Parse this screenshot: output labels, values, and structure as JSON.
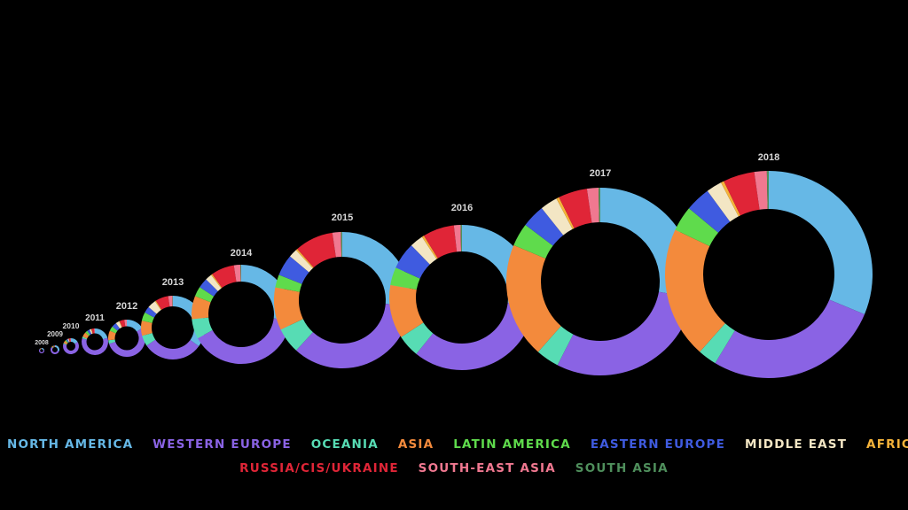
{
  "chart_data": {
    "type": "donut",
    "categories": [
      "NORTH AMERICA",
      "WESTERN EUROPE",
      "OCEANIA",
      "ASIA",
      "LATIN AMERICA",
      "EASTERN EUROPE",
      "MIDDLE EAST",
      "AFRICA",
      "RUSSIA/CIS/UKRAINE",
      "SOUTH-EAST ASIA",
      "SOUTH ASIA"
    ],
    "colors": [
      "#66b8e6",
      "#8a63e4",
      "#57dcb4",
      "#f38a3c",
      "#5fdb4c",
      "#3f5be0",
      "#f3e6c4",
      "#f5b33a",
      "#e02537",
      "#f07890",
      "#4f8f5c"
    ],
    "charts": [
      {
        "year": "2008",
        "values": [
          20,
          60,
          2,
          5,
          2,
          2,
          1,
          0.5,
          2,
          0.5,
          0
        ]
      },
      {
        "year": "2009",
        "values": [
          30,
          55,
          2,
          5,
          2,
          2,
          1,
          0.5,
          2,
          0.5,
          0
        ]
      },
      {
        "year": "2010",
        "values": [
          15,
          60,
          2,
          5,
          3,
          3,
          2,
          0.5,
          3,
          1,
          0
        ]
      },
      {
        "year": "2011",
        "values": [
          20,
          58,
          2,
          6,
          3,
          3,
          2,
          0.5,
          3,
          1,
          0
        ]
      },
      {
        "year": "2012",
        "values": [
          15,
          52,
          3,
          8,
          4,
          4,
          3,
          0.5,
          4,
          2,
          0
        ]
      },
      {
        "year": "2013",
        "values": [
          32,
          28,
          5,
          7,
          4,
          3,
          4,
          0.5,
          6,
          2,
          0.2
        ]
      },
      {
        "year": "2014",
        "values": [
          25,
          37,
          6,
          7,
          3,
          3,
          2,
          0.4,
          7,
          2,
          0.2
        ]
      },
      {
        "year": "2015",
        "values": [
          26,
          35,
          6,
          10,
          3,
          5,
          2,
          0.4,
          9,
          2,
          0.3
        ]
      },
      {
        "year": "2016",
        "values": [
          27,
          34,
          5,
          12,
          4,
          6,
          3,
          0.5,
          7,
          1.5,
          0.3
        ]
      },
      {
        "year": "2017",
        "values": [
          28,
          30,
          4,
          20,
          4,
          4,
          3,
          0.5,
          5,
          2,
          0.3
        ]
      },
      {
        "year": "2018",
        "values": [
          32,
          28,
          3,
          21,
          4,
          4,
          2.5,
          0.5,
          5,
          2,
          0.3
        ]
      }
    ]
  },
  "legend": {
    "row1": [
      "NORTH AMERICA",
      "WESTERN EUROPE",
      "OCEANIA",
      "ASIA",
      "LATIN AMERICA",
      "EASTERN EUROPE",
      "MIDDLE EAST",
      "AFRICA"
    ],
    "row2": [
      "RUSSIA/CIS/UKRAINE",
      "SOUTH-EAST ASIA",
      "SOUTH ASIA"
    ]
  }
}
